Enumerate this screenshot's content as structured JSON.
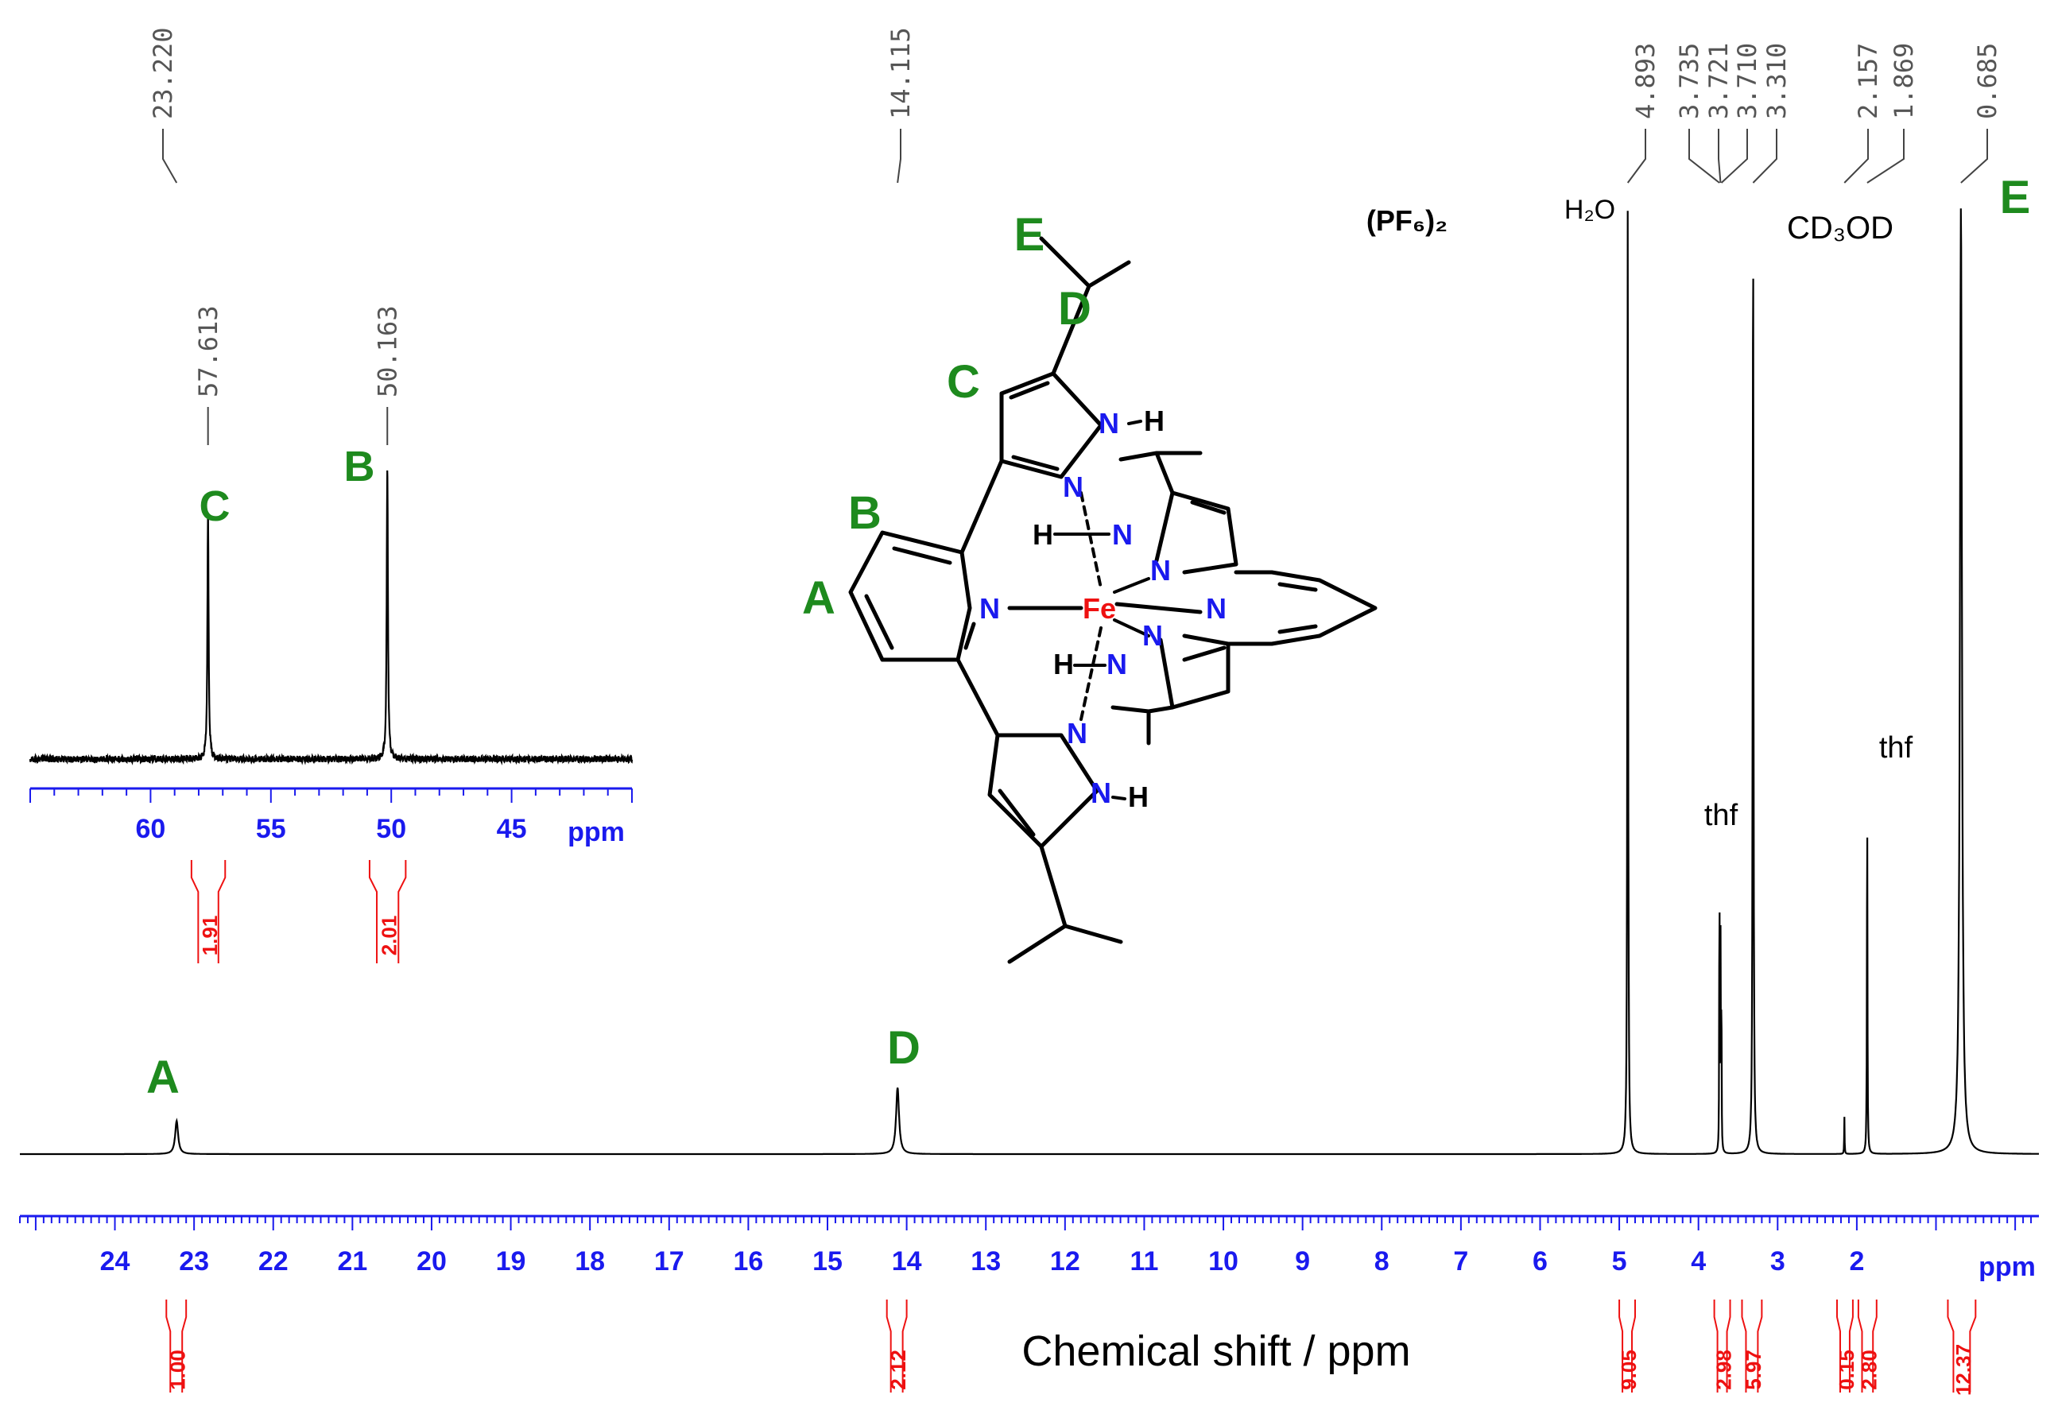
{
  "chart_data": [
    {
      "type": "line",
      "title": "",
      "xlabel": "Chemical shift / ppm",
      "xunit": "ppm",
      "xlim": [
        25.2,
        -0.3
      ],
      "ticks": [
        24,
        23,
        22,
        21,
        20,
        19,
        18,
        17,
        16,
        15,
        14,
        13,
        12,
        11,
        10,
        9,
        8,
        7,
        6,
        5,
        4,
        3,
        2
      ],
      "tick_labels": [
        "24",
        "23",
        "22",
        "21",
        "20",
        "19",
        "18",
        "17",
        "16",
        "15",
        "14",
        "13",
        "12",
        "11",
        "10",
        "9",
        "8",
        "7",
        "6",
        "5",
        "4",
        "3",
        "2"
      ],
      "peaks": [
        {
          "shift": 23.22,
          "height": 0.035,
          "width": 0.045
        },
        {
          "shift": 14.115,
          "height": 0.07,
          "width": 0.045
        },
        {
          "shift": 4.893,
          "height": 1.0,
          "width": 0.012
        },
        {
          "shift": 3.735,
          "height": 0.32,
          "width": 0.006
        },
        {
          "shift": 3.721,
          "height": 0.22,
          "width": 0.006
        },
        {
          "shift": 3.71,
          "height": 0.18,
          "width": 0.006
        },
        {
          "shift": 3.31,
          "height": 1.0,
          "width": 0.012
        },
        {
          "shift": 2.157,
          "height": 0.04,
          "width": 0.006
        },
        {
          "shift": 1.869,
          "height": 0.38,
          "width": 0.008
        },
        {
          "shift": 0.685,
          "height": 1.0,
          "width": 0.03
        }
      ],
      "peak_labels": [
        "23.220",
        "14.115",
        "4.893",
        "3.735",
        "3.721",
        "3.710",
        "3.310",
        "2.157",
        "1.869",
        "0.685"
      ],
      "integrals": [
        {
          "from": 23.35,
          "to": 23.1,
          "value": "1.00"
        },
        {
          "from": 14.25,
          "to": 14.0,
          "value": "2.12"
        },
        {
          "from": 5.0,
          "to": 4.8,
          "value": "9.05"
        },
        {
          "from": 3.8,
          "to": 3.6,
          "value": "2.98"
        },
        {
          "from": 3.45,
          "to": 3.2,
          "value": "5.97"
        },
        {
          "from": 2.25,
          "to": 2.05,
          "value": "0.15"
        },
        {
          "from": 1.98,
          "to": 1.75,
          "value": "2.80"
        },
        {
          "from": 0.85,
          "to": 0.5,
          "value": "12.37"
        }
      ],
      "assignments": [
        "A",
        "D",
        "E"
      ],
      "annotations": [
        "H₂O",
        "thf",
        "CD₃OD",
        "thf"
      ]
    },
    {
      "type": "line",
      "title": "",
      "xlabel": "",
      "xunit": "ppm",
      "xlim": [
        65,
        40
      ],
      "ticks": [
        60,
        55,
        50,
        45
      ],
      "tick_labels": [
        "60",
        "55",
        "50",
        "45"
      ],
      "peaks": [
        {
          "shift": 57.613,
          "height": 0.84,
          "width": 0.06
        },
        {
          "shift": 50.163,
          "height": 1.0,
          "width": 0.06
        }
      ],
      "peak_labels": [
        "57.613",
        "50.163"
      ],
      "integrals": [
        {
          "from": 58.3,
          "to": 56.9,
          "value": "1.91"
        },
        {
          "from": 50.9,
          "to": 49.4,
          "value": "2.01"
        }
      ],
      "assignments": [
        "C",
        "B"
      ]
    }
  ],
  "structure": {
    "counterion": "(PF₆)₂",
    "metal": "Fe",
    "nitrogen": "N",
    "hydrogen": "H",
    "site_labels": [
      "A",
      "B",
      "C",
      "D",
      "E"
    ]
  },
  "colors": {
    "axis": "#1a1aee",
    "integral": "#ee1111",
    "assignment": "#1e8a1e",
    "nitrogen": "#1a1aee",
    "metal": "#ee1111",
    "trace": "#000000",
    "peak_label": "#555555"
  }
}
